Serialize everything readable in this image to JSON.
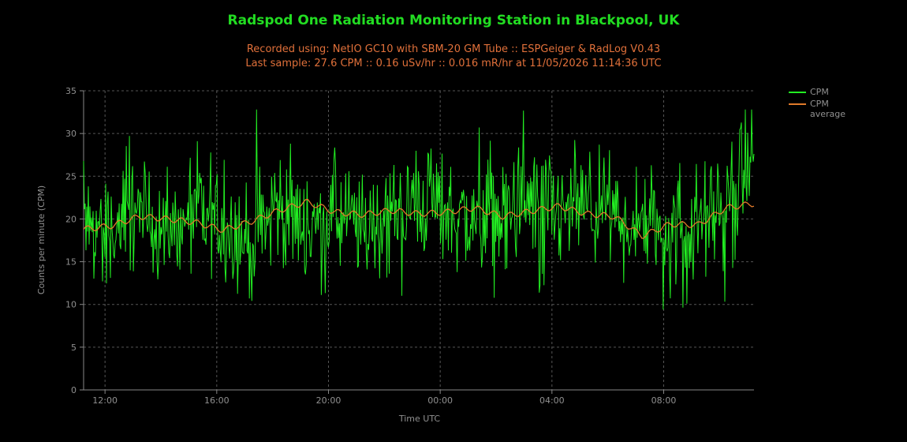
{
  "header": {
    "title": "Radspod One Radiation Monitoring Station in Blackpool, UK",
    "subtitle_line1": "Recorded using: NetIO GC10 with SBM-20 GM Tube :: ESPGeiger & RadLog V0.43",
    "subtitle_line2": "Last sample: 27.6 CPM :: 0.16 uSv/hr :: 0.016 mR/hr at 11/05/2026 11:14:36 UTC"
  },
  "legend": {
    "items": [
      {
        "label": "CPM",
        "color": "#22ee22"
      },
      {
        "label": "CPM average",
        "color": "#e07a2a"
      }
    ],
    "placement": "top-right-outside"
  },
  "chart_data": {
    "type": "line",
    "xlabel": "Time UTC",
    "ylabel": "Counts per minute (CPM)",
    "ylim": [
      0,
      35
    ],
    "yticks": [
      0,
      5,
      10,
      15,
      20,
      25,
      30,
      35
    ],
    "x_range_hours_utc": [
      "11:14",
      "11:14 next day"
    ],
    "xticks": [
      "12:00",
      "16:00",
      "20:00",
      "00:00",
      "04:00",
      "08:00"
    ],
    "grid": true,
    "series": [
      {
        "name": "CPM",
        "color": "#22ee22",
        "sample_interval_minutes": 60,
        "values": [
          19.5,
          18.2,
          21.0,
          17.5,
          20.3,
          19.8,
          16.9,
          21.4,
          19.0,
          20.6,
          18.7,
          20.1,
          22.4,
          21.0,
          19.5,
          20.8,
          21.9,
          20.4,
          21.2,
          20.0,
          19.3,
          18.0,
          20.9,
          21.5,
          27.6
        ],
        "min": 9.4,
        "max": 32.8,
        "typical_range": [
          13,
          28
        ]
      },
      {
        "name": "CPM average",
        "color": "#e07a2a",
        "sample_interval_minutes": 60,
        "values": [
          18.8,
          19.2,
          20.3,
          20.0,
          19.6,
          18.7,
          19.7,
          21.0,
          22.0,
          20.8,
          20.5,
          21.0,
          20.6,
          20.8,
          21.3,
          20.3,
          20.9,
          21.5,
          20.6,
          20.3,
          18.0,
          19.4,
          19.3,
          21.3,
          21.8
        ]
      }
    ]
  }
}
